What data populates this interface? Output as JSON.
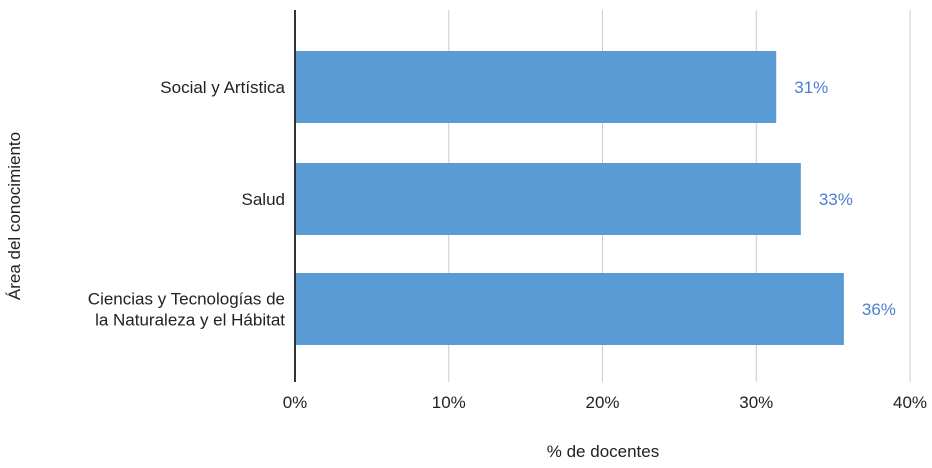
{
  "chart_data": {
    "type": "bar",
    "orientation": "horizontal",
    "categories": [
      [
        "Social y Artística"
      ],
      [
        "Salud"
      ],
      [
        "Ciencias y Tecnologías de",
        "la Naturaleza y el Hábitat"
      ]
    ],
    "values": [
      31.3,
      32.9,
      35.7
    ],
    "data_labels": [
      "31%",
      "33%",
      "36%"
    ],
    "xlabel": "% de docentes",
    "ylabel": "Área del conocimiento",
    "xlim": [
      0,
      40
    ],
    "xticks": [
      0,
      10,
      20,
      30,
      40
    ],
    "xtick_labels": [
      "0%",
      "10%",
      "20%",
      "30%",
      "40%"
    ],
    "grid": true,
    "legend": "none",
    "colors": {
      "bar": "#5b9bd5",
      "data_label": "#4a7fd1",
      "grid": "#cccccc",
      "axis": "#333333"
    }
  }
}
